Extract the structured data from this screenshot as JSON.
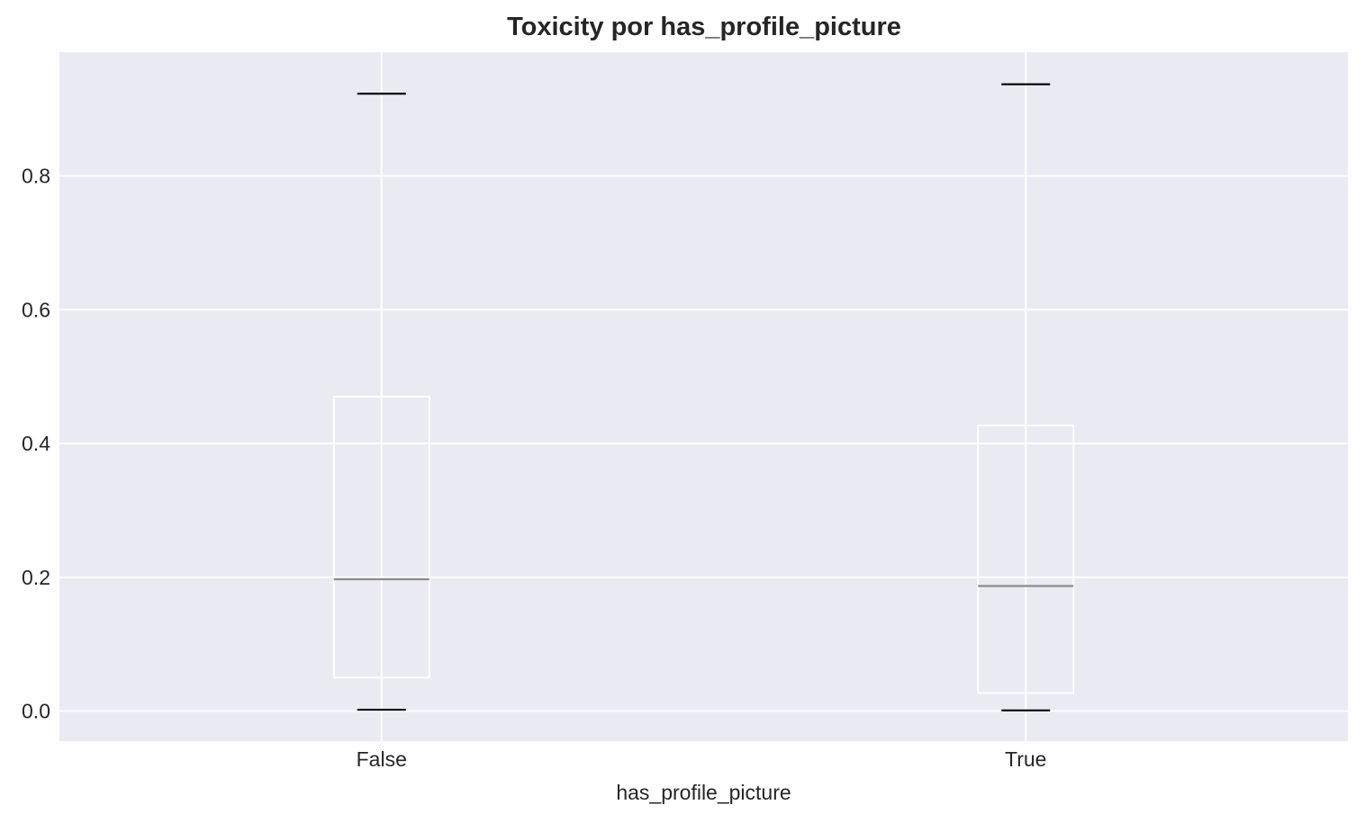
{
  "chart_data": {
    "type": "box",
    "title": "Toxicity por has_profile_picture",
    "xlabel": "has_profile_picture",
    "ylabel": "",
    "ylim": [
      -0.045,
      0.985
    ],
    "yticks": [
      0.0,
      0.2,
      0.4,
      0.6,
      0.8
    ],
    "ytick_labels": [
      "0.0",
      "0.2",
      "0.4",
      "0.6",
      "0.8"
    ],
    "categories": [
      "False",
      "True"
    ],
    "boxes": [
      {
        "category": "False",
        "whisker_low": 0.002,
        "q1": 0.05,
        "median": 0.197,
        "q3": 0.47,
        "whisker_high": 0.923
      },
      {
        "category": "True",
        "whisker_low": 0.001,
        "q1": 0.027,
        "median": 0.187,
        "q3": 0.427,
        "whisker_high": 0.937
      }
    ],
    "grid": true,
    "colors": {
      "background": "#eaeaf2",
      "grid": "#ffffff",
      "box": "#ffffff",
      "median": "#8c8c8c",
      "caps": "#000000"
    }
  }
}
